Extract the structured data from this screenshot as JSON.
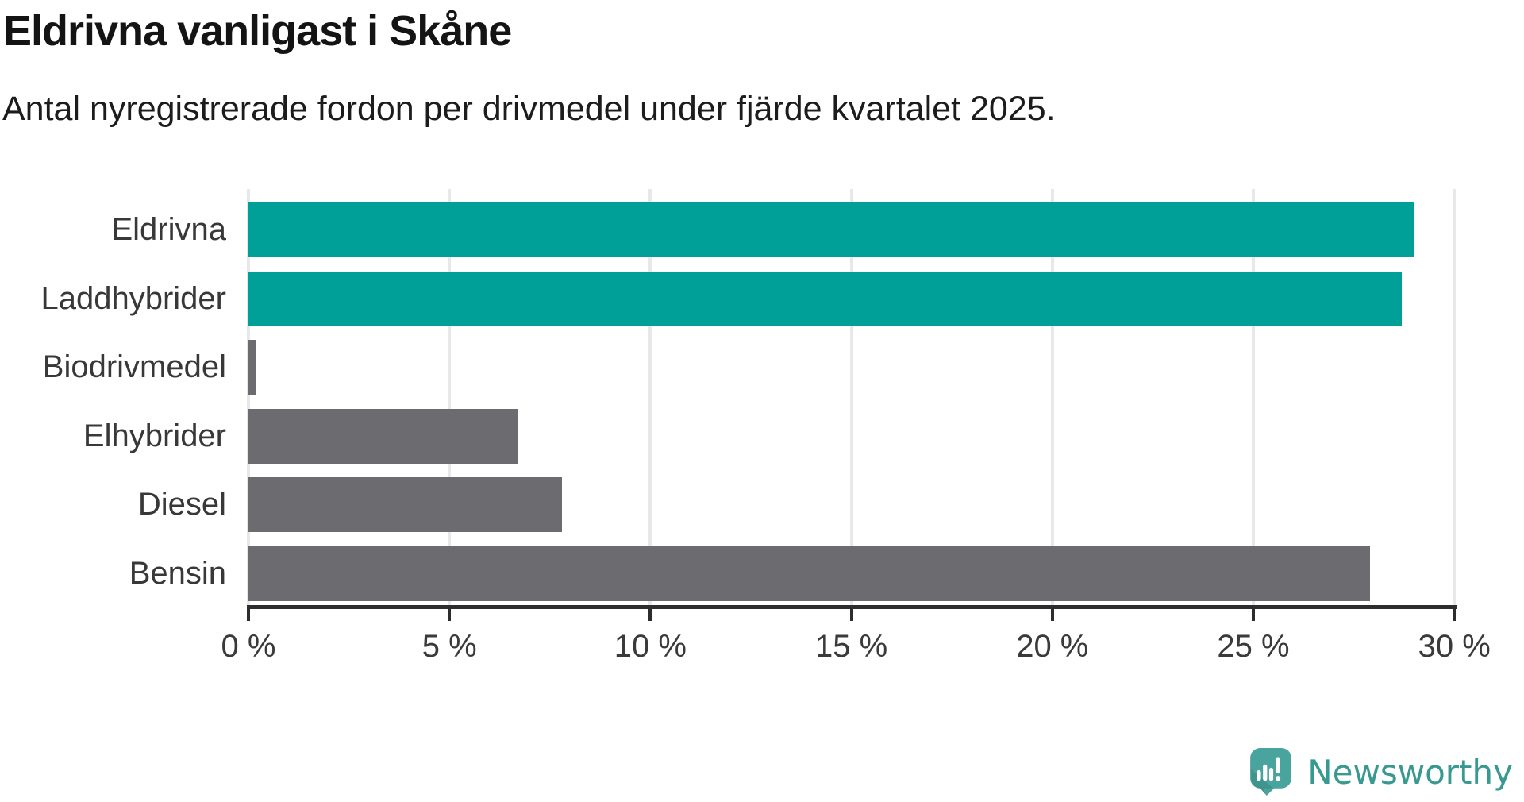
{
  "header": {
    "title": "Eldrivna vanligast i Skåne",
    "subtitle": "Antal nyregistrerade fordon per drivmedel under fjärde kvartalet 2025."
  },
  "chart_data": {
    "type": "bar",
    "orientation": "horizontal",
    "title": "Eldrivna vanligast i Skåne",
    "subtitle": "Antal nyregistrerade fordon per drivmedel under fjärde kvartalet 2025.",
    "categories": [
      "Eldrivna",
      "Laddhybrider",
      "Biodrivmedel",
      "Elhybrider",
      "Diesel",
      "Bensin"
    ],
    "values": [
      29.0,
      28.7,
      0.2,
      6.7,
      7.8,
      27.9
    ],
    "unit": "%",
    "xlim": [
      0,
      30
    ],
    "x_ticks": [
      0,
      5,
      10,
      15,
      20,
      25,
      30
    ],
    "x_tick_labels": [
      "0 %",
      "5 %",
      "10 %",
      "15 %",
      "20 %",
      "25 %",
      "30 %"
    ],
    "bar_colors": [
      "#00a099",
      "#00a099",
      "#6c6b70",
      "#6c6b70",
      "#6c6b70",
      "#6c6b70"
    ],
    "highlight_color": "#00a099",
    "default_color": "#6c6b70",
    "grid": true,
    "gridline_color": "#e8e8e8",
    "legend": false
  },
  "footer": {
    "brand": "Newsworthy",
    "brand_color": "#37998f",
    "icon": "newsworthy-bar-chart-bubble-icon",
    "icon_color": "#4aa49e"
  }
}
